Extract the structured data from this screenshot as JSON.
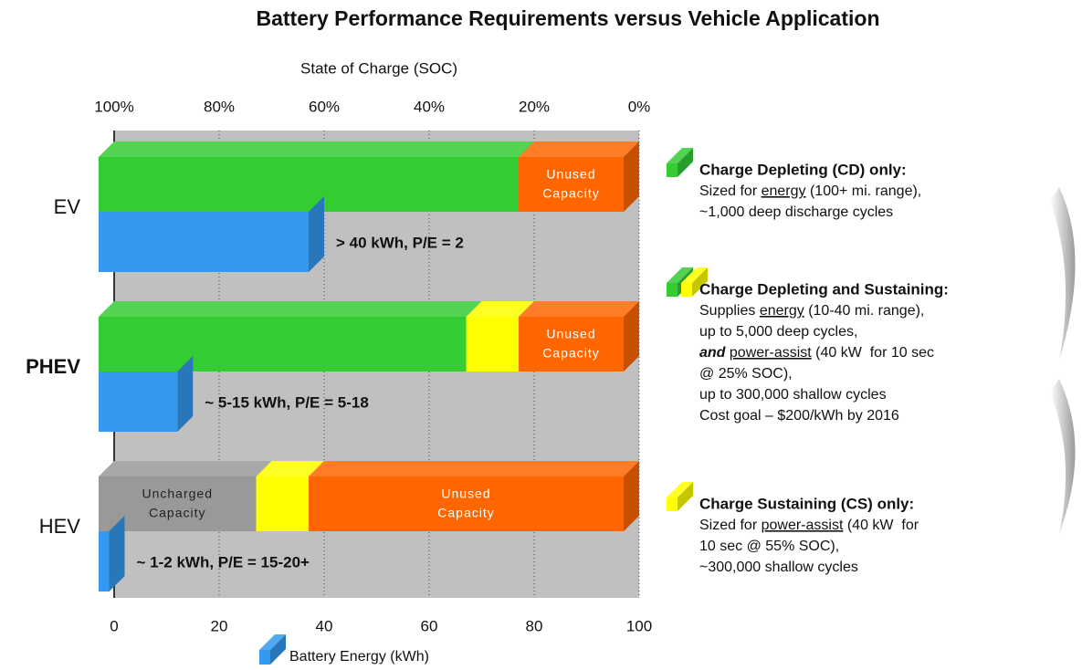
{
  "chart_data": {
    "type": "bar",
    "title": "Battery Performance Requirements versus Vehicle Application",
    "x2label": "State of Charge (SOC)",
    "x2lim": [
      100,
      0
    ],
    "x2ticks": [
      {
        "value": 100,
        "label": "100%"
      },
      {
        "value": 80,
        "label": "80%"
      },
      {
        "value": 60,
        "label": "60%"
      },
      {
        "value": 40,
        "label": "40%"
      },
      {
        "value": 20,
        "label": "20%"
      },
      {
        "value": 0,
        "label": "0%"
      }
    ],
    "xlim": [
      0,
      100
    ],
    "xticks": [
      0,
      20,
      40,
      60,
      80,
      100
    ],
    "grid": true,
    "categories": [
      "EV",
      "PHEV",
      "HEV"
    ],
    "category_bold": [
      false,
      true,
      false
    ],
    "soc_series": [
      {
        "name": "Uncharged Capacity",
        "color": "#999999",
        "label_color": "#222222",
        "values": [
          null,
          null,
          30
        ]
      },
      {
        "color": "#33cc33",
        "values": [
          80,
          70,
          null
        ]
      },
      {
        "color": "#ffff00",
        "values": [
          null,
          10,
          10
        ]
      },
      {
        "name": "Unused Capacity",
        "color": "#ff6600",
        "label_color": "#ffffff",
        "values": [
          20,
          20,
          60
        ]
      }
    ],
    "series": [
      {
        "name": "Battery Energy (kWh)",
        "color": "#3399ee",
        "values": [
          40,
          15,
          2
        ],
        "value_labels": [
          "> 40 kWh, P/E = 2",
          "~ 5-15 kWh, P/E = 5-18",
          "~ 1-2 kWh, P/E = 15-20+"
        ]
      }
    ],
    "legend_items": [
      {
        "colors": [
          "#33cc33"
        ],
        "title": "Charge Depleting (CD) only:",
        "lines": [
          [
            {
              "text": "Sized for "
            },
            {
              "text": "energy",
              "style": "underline"
            },
            {
              "text": " (100+ mi. range),"
            }
          ],
          [
            {
              "text": "~1,000 deep discharge cycles"
            }
          ]
        ]
      },
      {
        "colors": [
          "#33cc33",
          "#ffff00"
        ],
        "title": "Charge Depleting and Sustaining:",
        "lines": [
          [
            {
              "text": "Supplies "
            },
            {
              "text": "energy",
              "style": "underline"
            },
            {
              "text": " (10-40 mi. range),"
            }
          ],
          [
            {
              "text": "up to 5,000 deep cycles,"
            }
          ],
          [
            {
              "text": "and",
              "style": "bold-italic"
            },
            {
              "text": " "
            },
            {
              "text": "power-assist",
              "style": "underline"
            },
            {
              "text": " (40 kW  for 10 sec"
            }
          ],
          [
            {
              "text": "@ 25% SOC),"
            }
          ],
          [
            {
              "text": "up to 300,000 shallow cycles"
            }
          ],
          [
            {
              "text": "Cost goal – $200/kWh by 2016"
            }
          ]
        ]
      },
      {
        "colors": [
          "#ffff00"
        ],
        "title": "Charge Sustaining (CS) only:",
        "lines": [
          [
            {
              "text": "Sized for "
            },
            {
              "text": "power-assist",
              "style": "underline"
            },
            {
              "text": " (40 kW  for"
            }
          ],
          [
            {
              "text": "10 sec @ 55% SOC),"
            }
          ],
          [
            {
              "text": "~300,000 shallow cycles"
            }
          ]
        ]
      }
    ]
  }
}
